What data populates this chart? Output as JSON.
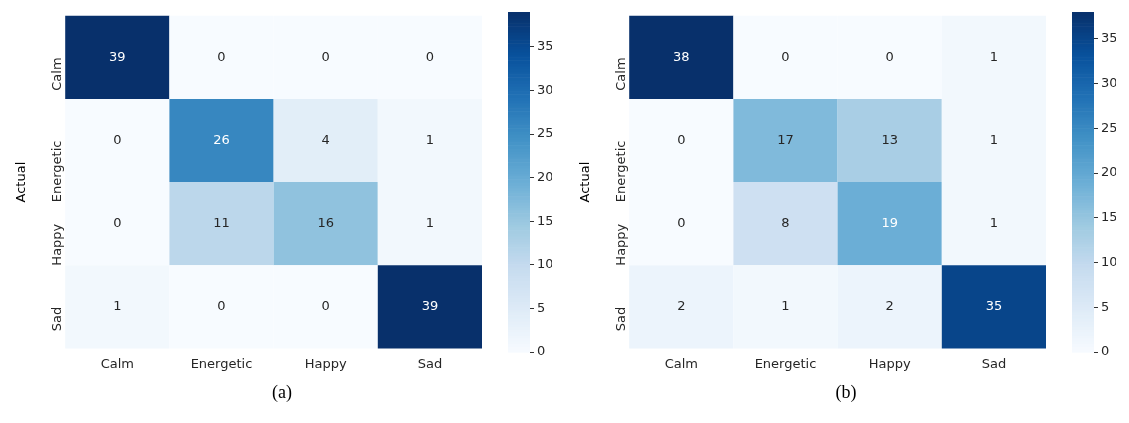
{
  "chart_data": [
    {
      "type": "heatmap",
      "ylabel": "Actual",
      "categories": [
        "Calm",
        "Energetic",
        "Happy",
        "Sad"
      ],
      "y_categories": [
        "Calm",
        "Energetic",
        "Happy",
        "Sad"
      ],
      "cells": [
        [
          39,
          0,
          0,
          0
        ],
        [
          0,
          26,
          4,
          1
        ],
        [
          0,
          11,
          16,
          1
        ],
        [
          1,
          0,
          0,
          39
        ]
      ],
      "clim": [
        0,
        39
      ],
      "cticks": [
        0,
        5,
        10,
        15,
        20,
        25,
        30,
        35
      ],
      "data_labels": true,
      "annotations": [
        "(a)"
      ]
    },
    {
      "type": "heatmap",
      "ylabel": "Actual",
      "categories": [
        "Calm",
        "Energetic",
        "Happy",
        "Sad"
      ],
      "y_categories": [
        "Calm",
        "Energetic",
        "Happy",
        "Sad"
      ],
      "cells": [
        [
          38,
          0,
          0,
          1
        ],
        [
          0,
          17,
          13,
          1
        ],
        [
          0,
          8,
          19,
          1
        ],
        [
          2,
          1,
          2,
          35
        ]
      ],
      "clim": [
        0,
        38
      ],
      "cticks": [
        0,
        5,
        10,
        15,
        20,
        25,
        30,
        35
      ],
      "data_labels": true,
      "annotations": [
        "(b)"
      ]
    }
  ]
}
